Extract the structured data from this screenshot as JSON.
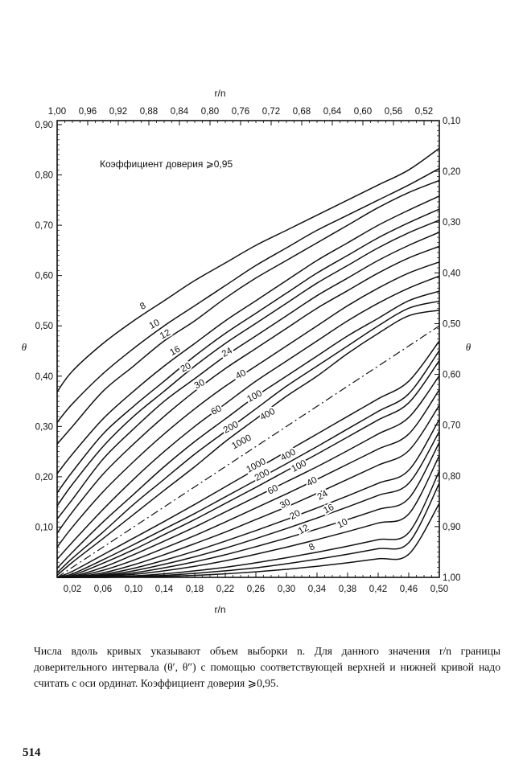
{
  "chart_data": {
    "type": "line",
    "legend_note": "Коэффициент доверия ⩾0,95",
    "x_axis_bottom": {
      "label": "r/n",
      "range": [
        0,
        0.5
      ],
      "ticks": [
        0.02,
        0.06,
        0.1,
        0.14,
        0.18,
        0.22,
        0.26,
        0.3,
        0.34,
        0.38,
        0.42,
        0.46,
        0.5
      ],
      "tick_labels": [
        "0,02",
        "0,06",
        "0,10",
        "0,14",
        "0,18",
        "0,22",
        "0,26",
        "0,30",
        "0,34",
        "0,38",
        "0,42",
        "0,46",
        "0,50"
      ]
    },
    "x_axis_top": {
      "label": "r/n",
      "range": [
        1.0,
        0.5
      ],
      "ticks": [
        1.0,
        0.96,
        0.92,
        0.88,
        0.84,
        0.8,
        0.76,
        0.72,
        0.68,
        0.64,
        0.6,
        0.56,
        0.52
      ],
      "tick_labels": [
        "1,00",
        "0,96",
        "0,92",
        "0,88",
        "0,84",
        "0,80",
        "0,76",
        "0,72",
        "0,68",
        "0,64",
        "0,60",
        "0,56",
        "0,52"
      ]
    },
    "y_axis_left": {
      "label": "θ",
      "range": [
        0,
        0.9
      ],
      "ticks": [
        0.1,
        0.2,
        0.3,
        0.4,
        0.5,
        0.6,
        0.7,
        0.8,
        0.9
      ],
      "tick_labels": [
        "0,10",
        "0,20",
        "0,30",
        "0,40",
        "0,50",
        "0,60",
        "0,70",
        "0,80",
        "0,90"
      ]
    },
    "y_axis_right": {
      "label": "θ",
      "range": [
        1.0,
        0.1
      ],
      "ticks": [
        0.1,
        0.2,
        0.3,
        0.4,
        0.5,
        0.6,
        0.7,
        0.8,
        0.9,
        1.0
      ],
      "tick_labels": [
        "0,10",
        "0,20",
        "0,30",
        "0,40",
        "0,50",
        "0,60",
        "0,70",
        "0,80",
        "0,90",
        "1,00"
      ]
    },
    "grid": false,
    "reference_line": {
      "style": "dash-dot",
      "x": [
        0,
        0.5
      ],
      "y": [
        0,
        0.5
      ]
    },
    "series": [
      {
        "name": "8",
        "bound": "upper",
        "x": [
          0,
          0.02,
          0.06,
          0.1,
          0.14,
          0.18,
          0.22,
          0.26,
          0.3,
          0.34,
          0.38,
          0.42,
          0.46,
          0.5
        ],
        "y": [
          0.369,
          0.41,
          0.465,
          0.51,
          0.55,
          0.59,
          0.625,
          0.66,
          0.69,
          0.72,
          0.75,
          0.78,
          0.81,
          0.853
        ]
      },
      {
        "name": "10",
        "bound": "upper",
        "x": [
          0,
          0.02,
          0.06,
          0.1,
          0.14,
          0.18,
          0.22,
          0.26,
          0.3,
          0.34,
          0.38,
          0.42,
          0.46,
          0.5
        ],
        "y": [
          0.308,
          0.345,
          0.405,
          0.455,
          0.5,
          0.54,
          0.58,
          0.62,
          0.655,
          0.69,
          0.72,
          0.75,
          0.78,
          0.813
        ]
      },
      {
        "name": "12",
        "bound": "upper",
        "x": [
          0,
          0.02,
          0.06,
          0.1,
          0.14,
          0.18,
          0.22,
          0.26,
          0.3,
          0.34,
          0.38,
          0.42,
          0.46,
          0.5
        ],
        "y": [
          0.265,
          0.3,
          0.37,
          0.42,
          0.47,
          0.51,
          0.555,
          0.595,
          0.63,
          0.665,
          0.7,
          0.735,
          0.765,
          0.789
        ]
      },
      {
        "name": "16",
        "bound": "upper",
        "x": [
          0,
          0.02,
          0.06,
          0.1,
          0.14,
          0.18,
          0.22,
          0.26,
          0.3,
          0.34,
          0.38,
          0.42,
          0.46,
          0.5
        ],
        "y": [
          0.206,
          0.245,
          0.315,
          0.37,
          0.42,
          0.465,
          0.51,
          0.55,
          0.59,
          0.63,
          0.665,
          0.7,
          0.73,
          0.758
        ]
      },
      {
        "name": "20",
        "bound": "upper",
        "x": [
          0,
          0.02,
          0.06,
          0.1,
          0.14,
          0.18,
          0.22,
          0.26,
          0.3,
          0.34,
          0.38,
          0.42,
          0.46,
          0.5
        ],
        "y": [
          0.168,
          0.21,
          0.285,
          0.34,
          0.39,
          0.44,
          0.485,
          0.525,
          0.565,
          0.605,
          0.64,
          0.675,
          0.705,
          0.732
        ]
      },
      {
        "name": "24",
        "bound": "upper",
        "x": [
          0,
          0.02,
          0.06,
          0.1,
          0.14,
          0.18,
          0.22,
          0.26,
          0.3,
          0.34,
          0.38,
          0.42,
          0.46,
          0.5
        ],
        "y": [
          0.142,
          0.185,
          0.26,
          0.32,
          0.37,
          0.42,
          0.465,
          0.505,
          0.545,
          0.585,
          0.62,
          0.655,
          0.685,
          0.71
        ]
      },
      {
        "name": "30",
        "bound": "upper",
        "x": [
          0,
          0.02,
          0.06,
          0.1,
          0.14,
          0.18,
          0.22,
          0.26,
          0.3,
          0.34,
          0.38,
          0.42,
          0.46,
          0.5
        ],
        "y": [
          0.116,
          0.155,
          0.235,
          0.295,
          0.35,
          0.395,
          0.44,
          0.48,
          0.52,
          0.56,
          0.595,
          0.63,
          0.66,
          0.686
        ]
      },
      {
        "name": "40",
        "bound": "upper",
        "x": [
          0,
          0.02,
          0.06,
          0.1,
          0.14,
          0.18,
          0.22,
          0.26,
          0.3,
          0.34,
          0.38,
          0.42,
          0.46,
          0.5
        ],
        "y": [
          0.088,
          0.13,
          0.205,
          0.265,
          0.32,
          0.37,
          0.415,
          0.455,
          0.495,
          0.535,
          0.57,
          0.605,
          0.635,
          0.658
        ]
      },
      {
        "name": "60",
        "bound": "upper",
        "x": [
          0,
          0.02,
          0.06,
          0.1,
          0.14,
          0.18,
          0.22,
          0.26,
          0.3,
          0.34,
          0.38,
          0.42,
          0.46,
          0.5
        ],
        "y": [
          0.06,
          0.1,
          0.17,
          0.23,
          0.285,
          0.335,
          0.38,
          0.42,
          0.46,
          0.5,
          0.54,
          0.575,
          0.605,
          0.627
        ]
      },
      {
        "name": "100",
        "bound": "upper",
        "x": [
          0,
          0.02,
          0.06,
          0.1,
          0.14,
          0.18,
          0.22,
          0.26,
          0.3,
          0.34,
          0.38,
          0.42,
          0.46,
          0.5
        ],
        "y": [
          0.036,
          0.07,
          0.135,
          0.195,
          0.25,
          0.3,
          0.345,
          0.39,
          0.43,
          0.47,
          0.51,
          0.545,
          0.575,
          0.599
        ]
      },
      {
        "name": "200",
        "bound": "upper",
        "x": [
          0,
          0.02,
          0.06,
          0.1,
          0.14,
          0.18,
          0.22,
          0.26,
          0.3,
          0.34,
          0.38,
          0.42,
          0.46,
          0.5
        ],
        "y": [
          0.018,
          0.05,
          0.11,
          0.165,
          0.22,
          0.27,
          0.315,
          0.36,
          0.4,
          0.44,
          0.48,
          0.515,
          0.55,
          0.569
        ]
      },
      {
        "name": "400",
        "bound": "upper",
        "x": [
          0,
          0.02,
          0.06,
          0.1,
          0.14,
          0.18,
          0.22,
          0.26,
          0.3,
          0.34,
          0.38,
          0.42,
          0.46,
          0.5
        ],
        "y": [
          0.009,
          0.038,
          0.09,
          0.145,
          0.195,
          0.245,
          0.29,
          0.335,
          0.38,
          0.42,
          0.46,
          0.5,
          0.535,
          0.549
        ]
      },
      {
        "name": "1000",
        "bound": "upper",
        "x": [
          0,
          0.02,
          0.06,
          0.1,
          0.14,
          0.18,
          0.22,
          0.26,
          0.3,
          0.34,
          0.38,
          0.42,
          0.46,
          0.5
        ],
        "y": [
          0.004,
          0.03,
          0.077,
          0.125,
          0.173,
          0.22,
          0.27,
          0.315,
          0.36,
          0.4,
          0.445,
          0.485,
          0.52,
          0.531
        ]
      },
      {
        "name": "1000",
        "bound": "lower",
        "x": [
          0,
          0.02,
          0.06,
          0.1,
          0.14,
          0.18,
          0.22,
          0.26,
          0.3,
          0.34,
          0.38,
          0.42,
          0.46,
          0.5
        ],
        "y": [
          0,
          0.012,
          0.045,
          0.078,
          0.111,
          0.145,
          0.18,
          0.215,
          0.25,
          0.285,
          0.32,
          0.355,
          0.39,
          0.47
        ]
      },
      {
        "name": "400",
        "bound": "lower",
        "x": [
          0,
          0.02,
          0.06,
          0.1,
          0.14,
          0.18,
          0.22,
          0.26,
          0.3,
          0.34,
          0.38,
          0.42,
          0.46,
          0.5
        ],
        "y": [
          0,
          0.007,
          0.035,
          0.065,
          0.096,
          0.127,
          0.16,
          0.193,
          0.226,
          0.26,
          0.295,
          0.33,
          0.365,
          0.451
        ]
      },
      {
        "name": "200",
        "bound": "lower",
        "x": [
          0,
          0.02,
          0.06,
          0.1,
          0.14,
          0.18,
          0.22,
          0.26,
          0.3,
          0.34,
          0.38,
          0.42,
          0.46,
          0.5
        ],
        "y": [
          0,
          0.004,
          0.028,
          0.055,
          0.085,
          0.115,
          0.147,
          0.179,
          0.212,
          0.245,
          0.279,
          0.313,
          0.347,
          0.431
        ]
      },
      {
        "name": "100",
        "bound": "lower",
        "x": [
          0,
          0.02,
          0.06,
          0.1,
          0.14,
          0.18,
          0.22,
          0.26,
          0.3,
          0.34,
          0.38,
          0.42,
          0.46,
          0.5
        ],
        "y": [
          0,
          0.002,
          0.02,
          0.045,
          0.072,
          0.1,
          0.13,
          0.16,
          0.19,
          0.22,
          0.252,
          0.285,
          0.318,
          0.401
        ]
      },
      {
        "name": "60",
        "bound": "lower",
        "x": [
          0,
          0.02,
          0.06,
          0.1,
          0.14,
          0.18,
          0.22,
          0.26,
          0.3,
          0.34,
          0.38,
          0.42,
          0.46,
          0.5
        ],
        "y": [
          0,
          0.001,
          0.014,
          0.034,
          0.058,
          0.083,
          0.11,
          0.138,
          0.166,
          0.195,
          0.225,
          0.255,
          0.285,
          0.373
        ]
      },
      {
        "name": "40",
        "bound": "lower",
        "x": [
          0,
          0.02,
          0.06,
          0.1,
          0.14,
          0.18,
          0.22,
          0.26,
          0.3,
          0.34,
          0.38,
          0.42,
          0.46,
          0.5
        ],
        "y": [
          0,
          0.0005,
          0.009,
          0.025,
          0.045,
          0.067,
          0.09,
          0.115,
          0.14,
          0.167,
          0.195,
          0.223,
          0.252,
          0.342
        ]
      },
      {
        "name": "30",
        "bound": "lower",
        "x": [
          0,
          0.02,
          0.06,
          0.1,
          0.14,
          0.18,
          0.22,
          0.26,
          0.3,
          0.34,
          0.38,
          0.42,
          0.46,
          0.5
        ],
        "y": [
          0,
          0,
          0.006,
          0.018,
          0.034,
          0.052,
          0.072,
          0.093,
          0.115,
          0.138,
          0.162,
          0.187,
          0.213,
          0.314
        ]
      },
      {
        "name": "24",
        "bound": "lower",
        "x": [
          0,
          0.02,
          0.06,
          0.1,
          0.14,
          0.18,
          0.22,
          0.26,
          0.3,
          0.34,
          0.38,
          0.42,
          0.46,
          0.5
        ],
        "y": [
          0,
          0,
          0.004,
          0.013,
          0.026,
          0.041,
          0.058,
          0.077,
          0.097,
          0.118,
          0.14,
          0.163,
          0.187,
          0.29
        ]
      },
      {
        "name": "20",
        "bound": "lower",
        "x": [
          0,
          0.02,
          0.06,
          0.1,
          0.14,
          0.18,
          0.22,
          0.26,
          0.3,
          0.34,
          0.38,
          0.42,
          0.46,
          0.5
        ],
        "y": [
          0,
          0,
          0.003,
          0.009,
          0.019,
          0.031,
          0.045,
          0.061,
          0.078,
          0.096,
          0.115,
          0.135,
          0.157,
          0.268
        ]
      },
      {
        "name": "16",
        "bound": "lower",
        "x": [
          0,
          0.02,
          0.06,
          0.1,
          0.14,
          0.18,
          0.22,
          0.26,
          0.3,
          0.34,
          0.38,
          0.42,
          0.46,
          0.5
        ],
        "y": [
          0,
          0,
          0.002,
          0.006,
          0.013,
          0.022,
          0.033,
          0.046,
          0.06,
          0.075,
          0.091,
          0.108,
          0.126,
          0.242
        ]
      },
      {
        "name": "12",
        "bound": "lower",
        "x": [
          0,
          0.02,
          0.06,
          0.1,
          0.14,
          0.18,
          0.22,
          0.26,
          0.3,
          0.34,
          0.38,
          0.42,
          0.46,
          0.5
        ],
        "y": [
          0,
          0,
          0.001,
          0.003,
          0.007,
          0.013,
          0.02,
          0.029,
          0.039,
          0.05,
          0.062,
          0.075,
          0.089,
          0.211
        ]
      },
      {
        "name": "10",
        "bound": "lower",
        "x": [
          0,
          0.02,
          0.06,
          0.1,
          0.14,
          0.18,
          0.22,
          0.26,
          0.3,
          0.34,
          0.38,
          0.42,
          0.46,
          0.5
        ],
        "y": [
          0,
          0,
          0,
          0.002,
          0.004,
          0.008,
          0.013,
          0.019,
          0.027,
          0.036,
          0.046,
          0.057,
          0.069,
          0.187
        ]
      },
      {
        "name": "8",
        "bound": "lower",
        "x": [
          0,
          0.02,
          0.06,
          0.1,
          0.14,
          0.18,
          0.22,
          0.26,
          0.3,
          0.34,
          0.38,
          0.42,
          0.46,
          0.5
        ],
        "y": [
          0,
          0,
          0,
          0.001,
          0.002,
          0.004,
          0.007,
          0.011,
          0.016,
          0.022,
          0.029,
          0.037,
          0.046,
          0.147
        ]
      }
    ],
    "curve_labels": [
      {
        "text": "8",
        "x": 0.112,
        "y": 0.54
      },
      {
        "text": "10",
        "x": 0.127,
        "y": 0.504
      },
      {
        "text": "12",
        "x": 0.141,
        "y": 0.484
      },
      {
        "text": "16",
        "x": 0.154,
        "y": 0.451
      },
      {
        "text": "20",
        "x": 0.168,
        "y": 0.418
      },
      {
        "text": "24",
        "x": 0.222,
        "y": 0.448
      },
      {
        "text": "30",
        "x": 0.186,
        "y": 0.385
      },
      {
        "text": "40",
        "x": 0.24,
        "y": 0.404
      },
      {
        "text": "60",
        "x": 0.208,
        "y": 0.333
      },
      {
        "text": "100",
        "x": 0.258,
        "y": 0.361
      },
      {
        "text": "200",
        "x": 0.227,
        "y": 0.299
      },
      {
        "text": "400",
        "x": 0.275,
        "y": 0.325
      },
      {
        "text": "1000",
        "x": 0.241,
        "y": 0.27
      },
      {
        "text": "1000",
        "x": 0.26,
        "y": 0.223
      },
      {
        "text": "400",
        "x": 0.302,
        "y": 0.244
      },
      {
        "text": "200",
        "x": 0.268,
        "y": 0.204
      },
      {
        "text": "100",
        "x": 0.316,
        "y": 0.222
      },
      {
        "text": "60",
        "x": 0.282,
        "y": 0.175
      },
      {
        "text": "40",
        "x": 0.333,
        "y": 0.191
      },
      {
        "text": "30",
        "x": 0.298,
        "y": 0.147
      },
      {
        "text": "24",
        "x": 0.347,
        "y": 0.164
      },
      {
        "text": "20",
        "x": 0.311,
        "y": 0.125
      },
      {
        "text": "16",
        "x": 0.355,
        "y": 0.137
      },
      {
        "text": "12",
        "x": 0.322,
        "y": 0.096
      },
      {
        "text": "10",
        "x": 0.373,
        "y": 0.108
      },
      {
        "text": "8",
        "x": 0.333,
        "y": 0.061
      }
    ]
  },
  "caption": "Числа вдоль кривых указывают объем выборки n. Для данного значения r/n границы доверительного интервала (θ′, θ″) с помощью соответствующей верхней и нижней кривой надо считать с оси ординат. Коэффициент доверия ⩾0,95.",
  "page_number": "514"
}
